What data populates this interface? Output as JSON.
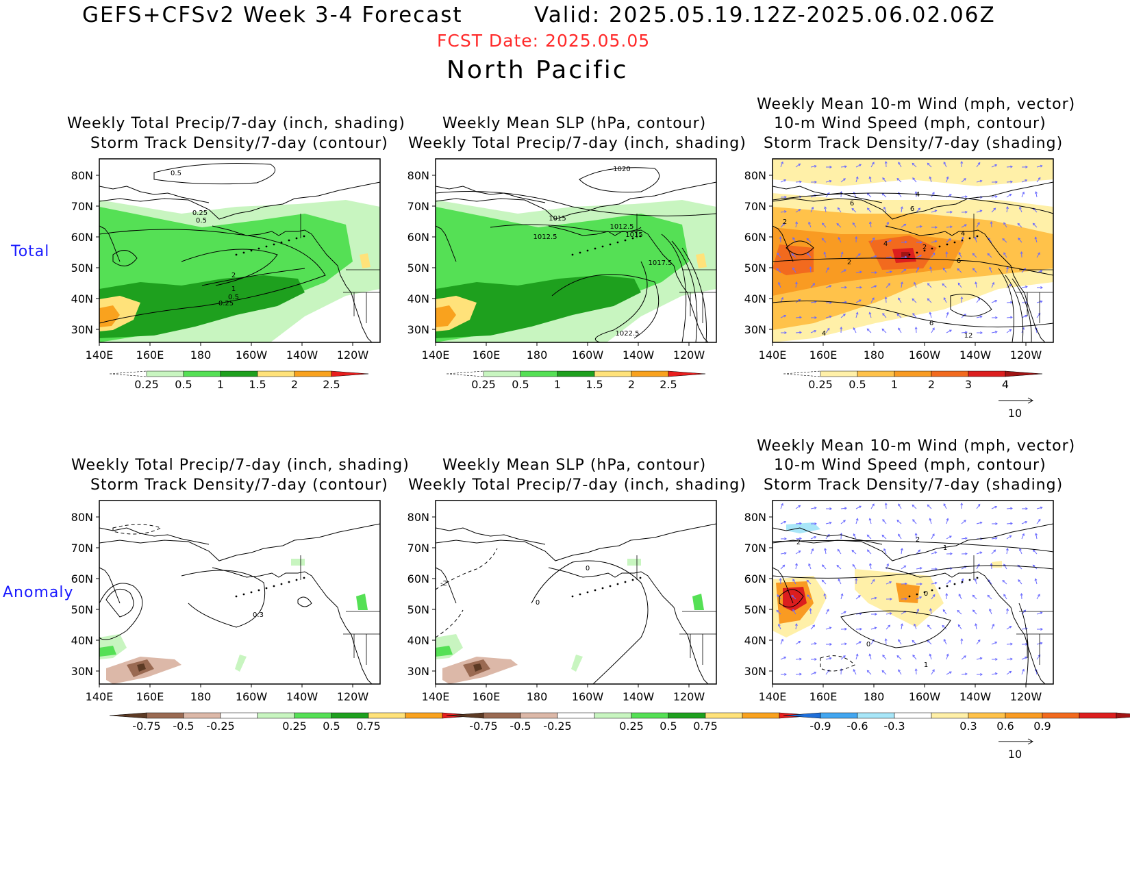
{
  "header": {
    "title": "GEFS+CFSv2 Week 3-4 Forecast",
    "valid": "Valid: 2025.05.19.12Z-2025.06.02.06Z",
    "fcst_date": "FCST Date: 2025.05.05",
    "region": "North Pacific"
  },
  "rows": {
    "total": "Total",
    "anomaly": "Anomaly"
  },
  "titles": {
    "p1": [
      "Weekly Total Precip/7-day (inch, shading)",
      "Storm Track Density/7-day (contour)"
    ],
    "p2": [
      "Weekly Mean SLP (hPa, contour)",
      "Weekly Total Precip/7-day (inch, shading)"
    ],
    "p3": [
      "Weekly Mean 10-m Wind (mph, vector)",
      "10-m Wind Speed (mph, contour)",
      "Storm Track Density/7-day (shading)"
    ]
  },
  "axes": {
    "lat": [
      "80N",
      "70N",
      "60N",
      "50N",
      "40N",
      "30N"
    ],
    "lon": [
      "140E",
      "160E",
      "180",
      "160W",
      "140W",
      "120W"
    ]
  },
  "colorbars": {
    "precip_total": [
      "0.25",
      "0.5",
      "1",
      "1.5",
      "2",
      "2.5"
    ],
    "std_total": [
      "0.25",
      "0.5",
      "1",
      "2",
      "3",
      "4"
    ],
    "precip_anom": [
      "-0.75",
      "-0.5",
      "-0.25",
      "0.25",
      "0.5",
      "0.75"
    ],
    "std_anom": [
      "-0.9",
      "-0.6",
      "-0.3",
      "0.3",
      "0.6",
      "0.9"
    ]
  },
  "colors": {
    "precip": [
      "#c8f5c0",
      "#55e055",
      "#1ea01e",
      "#ffe27a",
      "#f9a21e",
      "#e81e1e"
    ],
    "std": [
      "#fff0a8",
      "#ffc24a",
      "#f99b22",
      "#f26a1e",
      "#dc1e1e",
      "#a01414"
    ],
    "precip_anom_neg": [
      "#5c3a24",
      "#9a6a52",
      "#dcb8a8"
    ],
    "std_anom_neg": [
      "#1e6ed8",
      "#42a6f0",
      "#a8e6f8"
    ],
    "vector": "#6a6aff"
  },
  "vector_ref": "10",
  "contour_labels": {
    "p1_total": [
      "0.5",
      "0.25",
      "0.5",
      "2",
      "1",
      "0.5",
      "0.25"
    ],
    "p2_total": [
      "1020",
      "1015",
      "1012.5",
      "1012.5",
      "1015",
      "1017.5",
      "1022.5"
    ],
    "p3_total": [
      "4",
      "6",
      "2",
      "6",
      "4",
      "2",
      "4",
      "2",
      "6",
      "6",
      "4",
      "12"
    ],
    "p1_anom": [
      "0.3"
    ],
    "p2_anom": [
      "0",
      "-2",
      "0"
    ],
    "p3_anom": [
      "2",
      "2",
      "1",
      "0",
      "0",
      "1"
    ]
  }
}
